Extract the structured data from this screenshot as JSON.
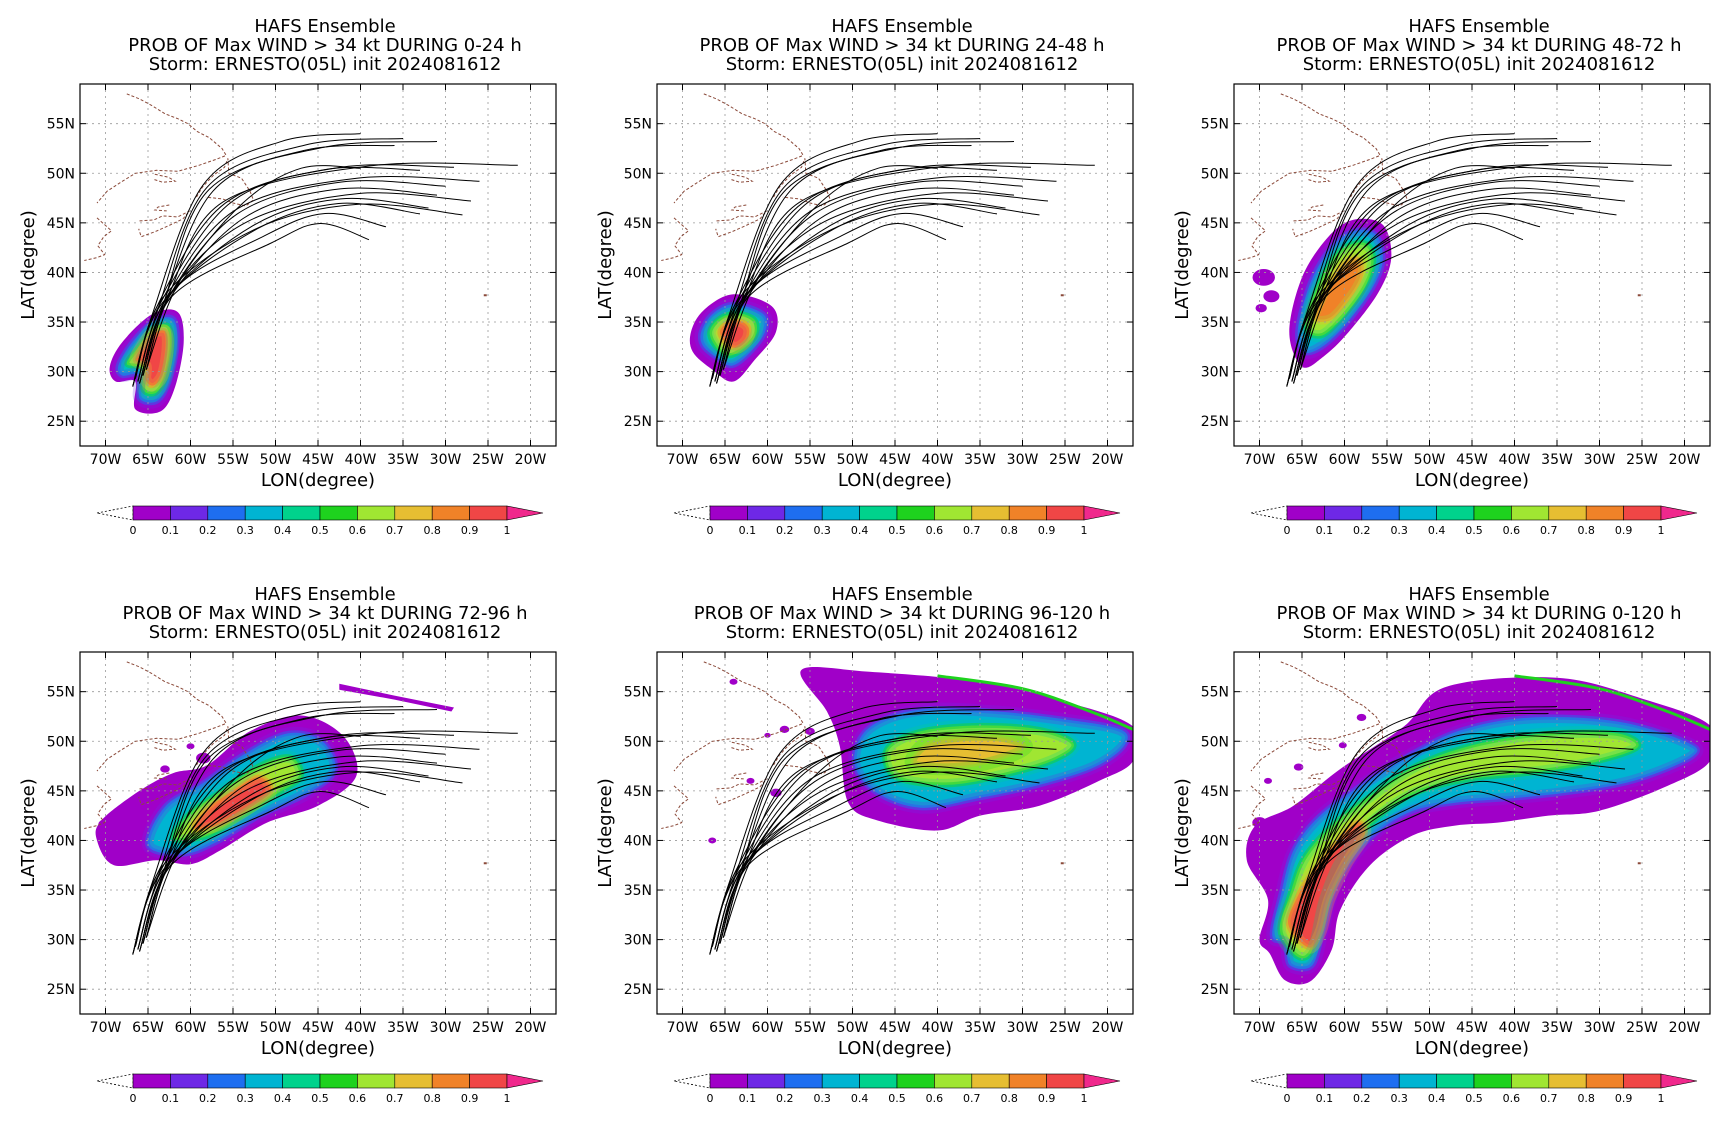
{
  "colors": [
    "#a000c8",
    "#6e28e6",
    "#1e6ef0",
    "#00b4d2",
    "#00d28c",
    "#1ed21e",
    "#a0e632",
    "#e6be32",
    "#f08228",
    "#f04646",
    "#f0288c"
  ],
  "lat_ticks": [
    "25N",
    "30N",
    "35N",
    "40N",
    "45N",
    "50N",
    "55N"
  ],
  "lon_ticks": [
    "70W",
    "65W",
    "60W",
    "55W",
    "50W",
    "45W",
    "40W",
    "35W",
    "30W",
    "25W",
    "20W"
  ],
  "xlabel": "LON(degree)",
  "ylabel": "LAT(degree)",
  "colorbar_labels": [
    "0",
    "0.1",
    "0.2",
    "0.3",
    "0.4",
    "0.5",
    "0.6",
    "0.7",
    "0.8",
    "0.9",
    "1"
  ],
  "panels": [
    {
      "line1": "HAFS Ensemble",
      "line2": "PROB OF Max WIND > 34 kt DURING  0-24 h",
      "line3": "Storm: ERNESTO(05L) init 2024081612",
      "window": "0-24"
    },
    {
      "line1": "HAFS Ensemble",
      "line2": "PROB OF Max WIND > 34 kt DURING 24-48 h",
      "line3": "Storm: ERNESTO(05L) init 2024081612",
      "window": "24-48"
    },
    {
      "line1": "HAFS Ensemble",
      "line2": "PROB OF Max WIND > 34 kt DURING 48-72 h",
      "line3": "Storm: ERNESTO(05L) init 2024081612",
      "window": "48-72"
    },
    {
      "line1": "HAFS Ensemble",
      "line2": "PROB OF Max WIND > 34 kt DURING 72-96 h",
      "line3": "Storm: ERNESTO(05L) init 2024081612",
      "window": "72-96"
    },
    {
      "line1": "HAFS Ensemble",
      "line2": "PROB OF Max WIND > 34 kt DURING 96-120 h",
      "line3": "Storm: ERNESTO(05L) init 2024081612",
      "window": "96-120"
    },
    {
      "line1": "HAFS Ensemble",
      "line2": "PROB OF Max WIND > 34 kt DURING 0-120 h",
      "line3": "Storm: ERNESTO(05L) init 2024081612",
      "window": "0-120"
    }
  ]
}
